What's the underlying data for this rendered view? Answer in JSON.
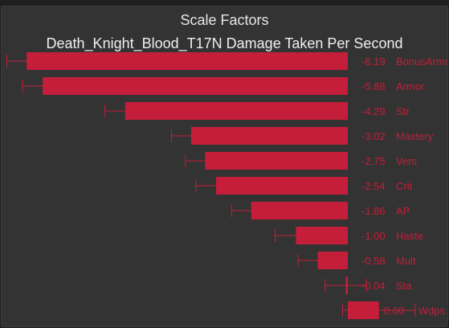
{
  "chart_data": {
    "type": "bar",
    "orientation": "horizontal",
    "title": "Scale Factors",
    "subtitle": "Death_Knight_Blood_T17N Damage Taken Per Second",
    "colors": {
      "bar": "#c41e3a",
      "label": "#c41e3a",
      "panel": "#333333",
      "title": "#e6e6e6"
    },
    "grid": false,
    "categories": [
      "BonusArmor",
      "Armor",
      "Str",
      "Mastery",
      "Vers",
      "Crit",
      "AP",
      "Haste",
      "Mult",
      "Sta",
      "Wdps"
    ],
    "values": [
      -6.19,
      -5.88,
      -4.29,
      -3.02,
      -2.75,
      -2.54,
      -1.86,
      -1.0,
      -0.58,
      -0.04,
      0.6
    ],
    "value_labels": [
      "-6.19",
      "-5.88",
      "-4.29",
      "-3.02",
      "-2.75",
      "-2.54",
      "-1.86",
      "-1.00",
      "-0.58",
      "-0.04",
      "0.60"
    ],
    "error": [
      0.38,
      0.39,
      0.39,
      0.38,
      0.38,
      0.39,
      0.38,
      0.4,
      0.38,
      0.4,
      0.7
    ]
  }
}
